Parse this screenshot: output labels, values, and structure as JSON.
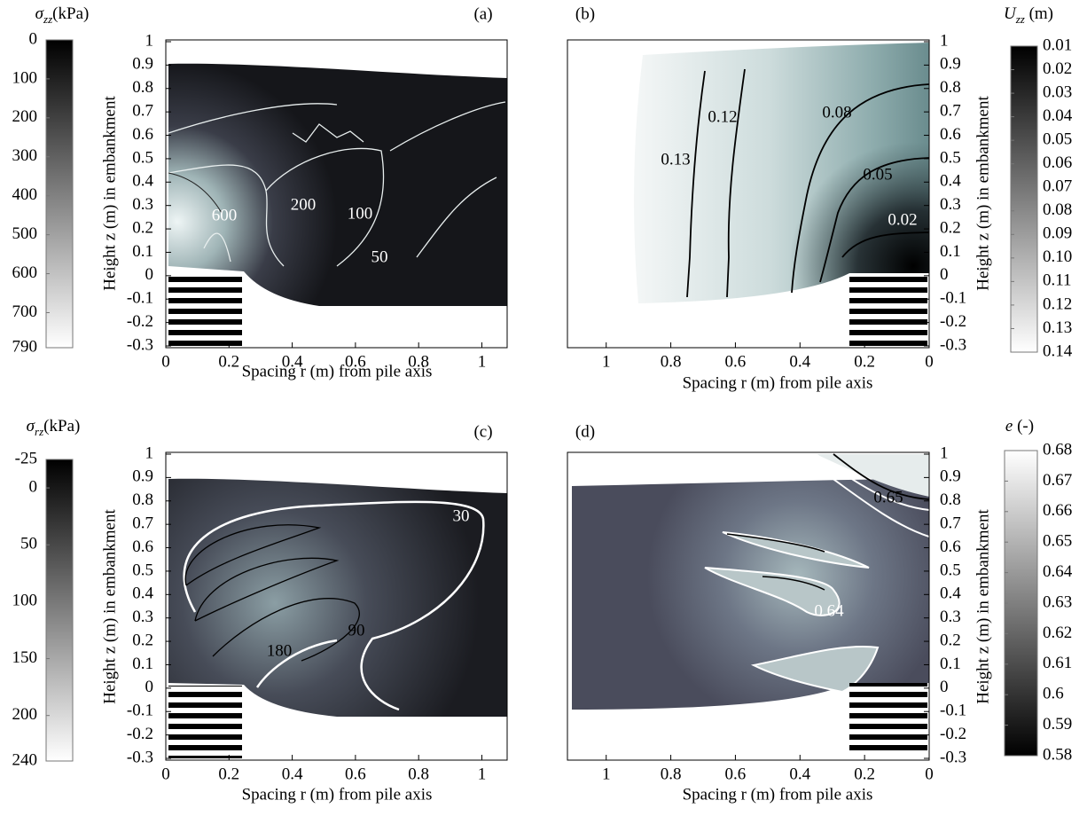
{
  "chart_data": [
    {
      "type": "contour",
      "title": "(a)",
      "xlabel": "Spacing r (m) from pile axis",
      "ylabel": "Height z (m) in embankment",
      "xlim": [
        0,
        1.08
      ],
      "xticks": [
        0,
        0.2,
        0.4,
        0.6,
        0.8,
        1
      ],
      "ylim": [
        -0.3,
        1
      ],
      "yticks": [
        -0.3,
        -0.2,
        -0.1,
        0,
        0.1,
        0.2,
        0.3,
        0.4,
        0.5,
        0.6,
        0.7,
        0.8,
        0.9,
        1
      ],
      "colorbar": {
        "symbol": "σ",
        "subscript": "zz",
        "unit": "(kPa)",
        "lim": [
          0,
          790
        ],
        "ticks": [
          0,
          100,
          200,
          300,
          400,
          500,
          600,
          700,
          790
        ]
      },
      "contour_labels": [
        600,
        200,
        100,
        50
      ]
    },
    {
      "type": "contour",
      "title": "(b)",
      "xlabel": "Spacing r (m) from pile axis",
      "ylabel": "Height z (m)  in embankment",
      "xlim": [
        1.12,
        0
      ],
      "xticks": [
        1,
        0.8,
        0.6,
        0.4,
        0.2,
        0
      ],
      "ylim": [
        -0.3,
        1
      ],
      "yticks": [
        -0.3,
        -0.2,
        -0.1,
        0,
        0.1,
        0.2,
        0.3,
        0.4,
        0.5,
        0.6,
        0.7,
        0.8,
        0.9,
        1
      ],
      "colorbar": {
        "symbol": "U",
        "subscript": "zz",
        "unit": " (m)",
        "lim": [
          0.01,
          0.14
        ],
        "ticks": [
          0.01,
          0.02,
          0.03,
          0.04,
          0.05,
          0.06,
          0.07,
          0.08,
          0.09,
          {
            "value": 0.1,
            "label": "0.10"
          },
          0.11,
          0.12,
          0.13,
          0.14
        ]
      },
      "contour_labels": [
        0.13,
        0.12,
        0.08,
        0.05,
        0.02
      ]
    },
    {
      "type": "contour",
      "title": "(c)",
      "xlabel": "Spacing r (m) from pile axis",
      "ylabel": "Height z (m)  in embankment",
      "xlim": [
        0,
        1.08
      ],
      "xticks": [
        0,
        0.2,
        0.4,
        0.6,
        0.8,
        1
      ],
      "ylim": [
        -0.3,
        1
      ],
      "yticks": [
        -0.3,
        -0.2,
        -0.1,
        0,
        0.1,
        0.2,
        0.3,
        0.4,
        0.5,
        0.6,
        0.7,
        0.8,
        0.9,
        1
      ],
      "colorbar": {
        "symbol": "σ",
        "subscript": "rz",
        "unit": "(kPa)",
        "lim": [
          -25,
          240
        ],
        "ticks": [
          -25,
          0,
          50,
          100,
          150,
          200,
          240
        ]
      },
      "contour_labels": [
        30,
        90,
        180
      ]
    },
    {
      "type": "contour",
      "title": "(d)",
      "xlabel": "Spacing r (m) from pile axis",
      "ylabel": "Height z (m) in embankment",
      "xlim": [
        1.12,
        0
      ],
      "xticks": [
        1,
        0.8,
        0.6,
        0.4,
        0.2,
        0
      ],
      "ylim": [
        -0.3,
        1
      ],
      "yticks": [
        -0.3,
        -0.2,
        -0.1,
        0,
        0.1,
        0.2,
        0.3,
        0.4,
        0.5,
        0.6,
        0.7,
        0.8,
        0.9,
        1
      ],
      "colorbar": {
        "symbol": "e",
        "unit": " (-)",
        "lim": [
          0.68,
          0.58
        ],
        "ticks": [
          0.68,
          0.67,
          0.66,
          0.65,
          0.64,
          0.63,
          0.62,
          0.61,
          0.6,
          0.59,
          0.58
        ]
      },
      "contour_labels": [
        0.65,
        0.64
      ]
    }
  ]
}
